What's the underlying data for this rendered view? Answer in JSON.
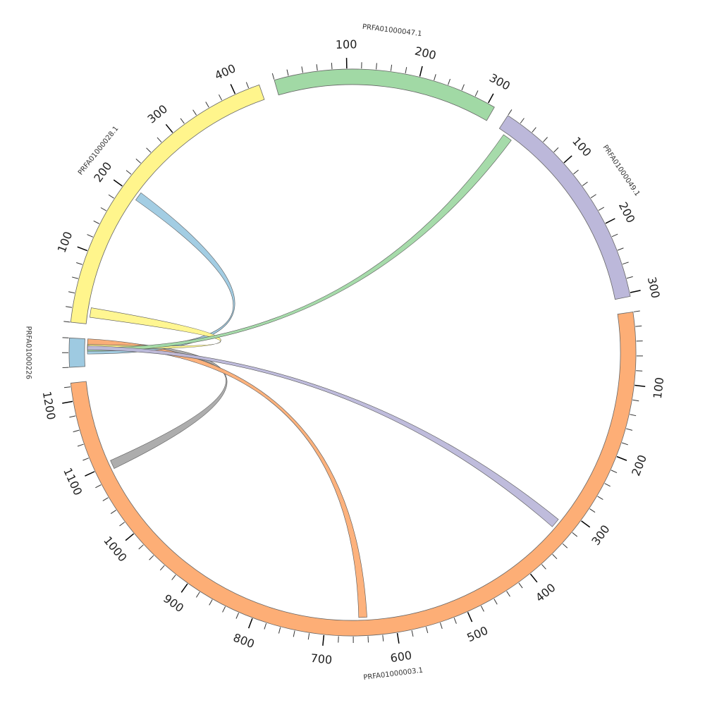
{
  "diagram": {
    "type": "circos",
    "segments": [
      {
        "id": "PRFA01000226",
        "label": "PRFA01000226",
        "length": 40,
        "color": "#9ecae1",
        "tick_labels": []
      },
      {
        "id": "PRFA01000028.1",
        "label": "PRFA01000028.1",
        "length": 435,
        "color": "#fff58c",
        "tick_labels": [
          "100",
          "200",
          "300",
          "400"
        ]
      },
      {
        "id": "PRFA01000047.1",
        "label": "PRFA01000047.1",
        "length": 310,
        "color": "#a1d9a5",
        "tick_labels": [
          "100",
          "200",
          "300"
        ]
      },
      {
        "id": "PRFA01000049.1",
        "label": "PRFA01000049.1",
        "length": 305,
        "color": "#bcb8da",
        "tick_labels": [
          "100",
          "200",
          "300"
        ]
      },
      {
        "id": "PRFA01000003.1",
        "label": "PRFA01000003.1",
        "length": 1225,
        "color": "#fdae76",
        "tick_labels": [
          "100",
          "200",
          "300",
          "400",
          "500",
          "600",
          "700",
          "800",
          "900",
          "1000",
          "1100",
          "1200"
        ]
      }
    ],
    "links": [
      {
        "from": "PRFA01000226",
        "from_range": [
          28,
          38
        ],
        "to": "PRFA01000003.1",
        "to_range": [
          1092,
          1105
        ],
        "color": "#a9a9a9"
      },
      {
        "from": "PRFA01000226",
        "from_range": [
          30,
          40
        ],
        "to": "PRFA01000003.1",
        "to_range": [
          640,
          652
        ],
        "color": "#fdae76"
      },
      {
        "from": "PRFA01000226",
        "from_range": [
          18,
          28
        ],
        "to": "PRFA01000028.1",
        "to_range": [
          195,
          208
        ],
        "color": "#9ecae1"
      },
      {
        "from": "PRFA01000226",
        "from_range": [
          26,
          32
        ],
        "to": "PRFA01000028.1",
        "to_range": [
          10,
          24
        ],
        "color": "#fff58c"
      },
      {
        "from": "PRFA01000226",
        "from_range": [
          22,
          28
        ],
        "to": "PRFA01000049.1",
        "to_range": [
          10,
          24
        ],
        "color": "#a1d9a5"
      },
      {
        "from": "PRFA01000226",
        "from_range": [
          24,
          30
        ],
        "to": "PRFA01000003.1",
        "to_range": [
          318,
          332
        ],
        "color": "#bcb8da"
      }
    ]
  }
}
